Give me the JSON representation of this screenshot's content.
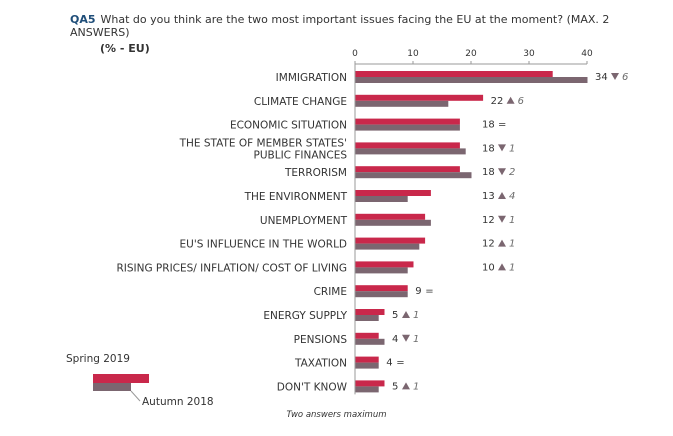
{
  "header": {
    "question_id": "QA5",
    "question_text": "What do you think are the two most important issues facing the EU at the moment? (MAX. 2 ANSWERS)",
    "unit": "(% - EU)"
  },
  "footnote": "Two answers maximum",
  "colors": {
    "current": "#c9284b",
    "previous": "#7b6670",
    "axis": "#9a9a9a",
    "text": "#333333",
    "up_arrow": "#7b6670",
    "down_arrow": "#7b6670"
  },
  "chart_data": {
    "type": "bar",
    "orientation": "horizontal",
    "xlim": [
      0,
      40
    ],
    "ticks": [
      0,
      10,
      20,
      30,
      40
    ],
    "grid": false,
    "legend_position": "bottom-left",
    "categories": [
      "IMMIGRATION",
      "CLIMATE CHANGE",
      "ECONOMIC SITUATION",
      "THE STATE OF MEMBER STATES' PUBLIC FINANCES",
      "TERRORISM",
      "THE ENVIRONMENT",
      "UNEMPLOYMENT",
      "EU'S INFLUENCE IN THE WORLD",
      "RISING PRICES/ INFLATION/ COST OF LIVING",
      "CRIME",
      "ENERGY SUPPLY",
      "PENSIONS",
      "TAXATION",
      "DON'T KNOW"
    ],
    "category_lines": [
      [
        "IMMIGRATION"
      ],
      [
        "CLIMATE CHANGE"
      ],
      [
        "ECONOMIC SITUATION"
      ],
      [
        "THE STATE OF MEMBER STATES'",
        "PUBLIC FINANCES"
      ],
      [
        "TERRORISM"
      ],
      [
        "THE ENVIRONMENT"
      ],
      [
        "UNEMPLOYMENT"
      ],
      [
        "EU'S INFLUENCE IN THE WORLD"
      ],
      [
        "RISING PRICES/ INFLATION/ COST OF LIVING"
      ],
      [
        "CRIME"
      ],
      [
        "ENERGY SUPPLY"
      ],
      [
        "PENSIONS"
      ],
      [
        "TAXATION"
      ],
      [
        "DON'T KNOW"
      ]
    ],
    "series": [
      {
        "name": "Spring 2019",
        "values": [
          34,
          22,
          18,
          18,
          18,
          13,
          12,
          12,
          10,
          9,
          5,
          4,
          4,
          5
        ]
      },
      {
        "name": "Autumn 2018",
        "values": [
          40,
          16,
          18,
          19,
          20,
          9,
          13,
          11,
          9,
          9,
          4,
          5,
          4,
          4
        ]
      }
    ],
    "changes": [
      {
        "value": 34,
        "dir": "down",
        "delta": 6
      },
      {
        "value": 22,
        "dir": "up",
        "delta": 6
      },
      {
        "value": 18,
        "dir": "eq",
        "delta": null
      },
      {
        "value": 18,
        "dir": "down",
        "delta": 1
      },
      {
        "value": 18,
        "dir": "down",
        "delta": 2
      },
      {
        "value": 13,
        "dir": "up",
        "delta": 4
      },
      {
        "value": 12,
        "dir": "down",
        "delta": 1
      },
      {
        "value": 12,
        "dir": "up",
        "delta": 1
      },
      {
        "value": 10,
        "dir": "up",
        "delta": 1
      },
      {
        "value": 9,
        "dir": "eq",
        "delta": null
      },
      {
        "value": 5,
        "dir": "up",
        "delta": 1
      },
      {
        "value": 4,
        "dir": "down",
        "delta": 1
      },
      {
        "value": 4,
        "dir": "eq",
        "delta": null
      },
      {
        "value": 5,
        "dir": "up",
        "delta": 1
      }
    ],
    "eq_symbol": "="
  }
}
